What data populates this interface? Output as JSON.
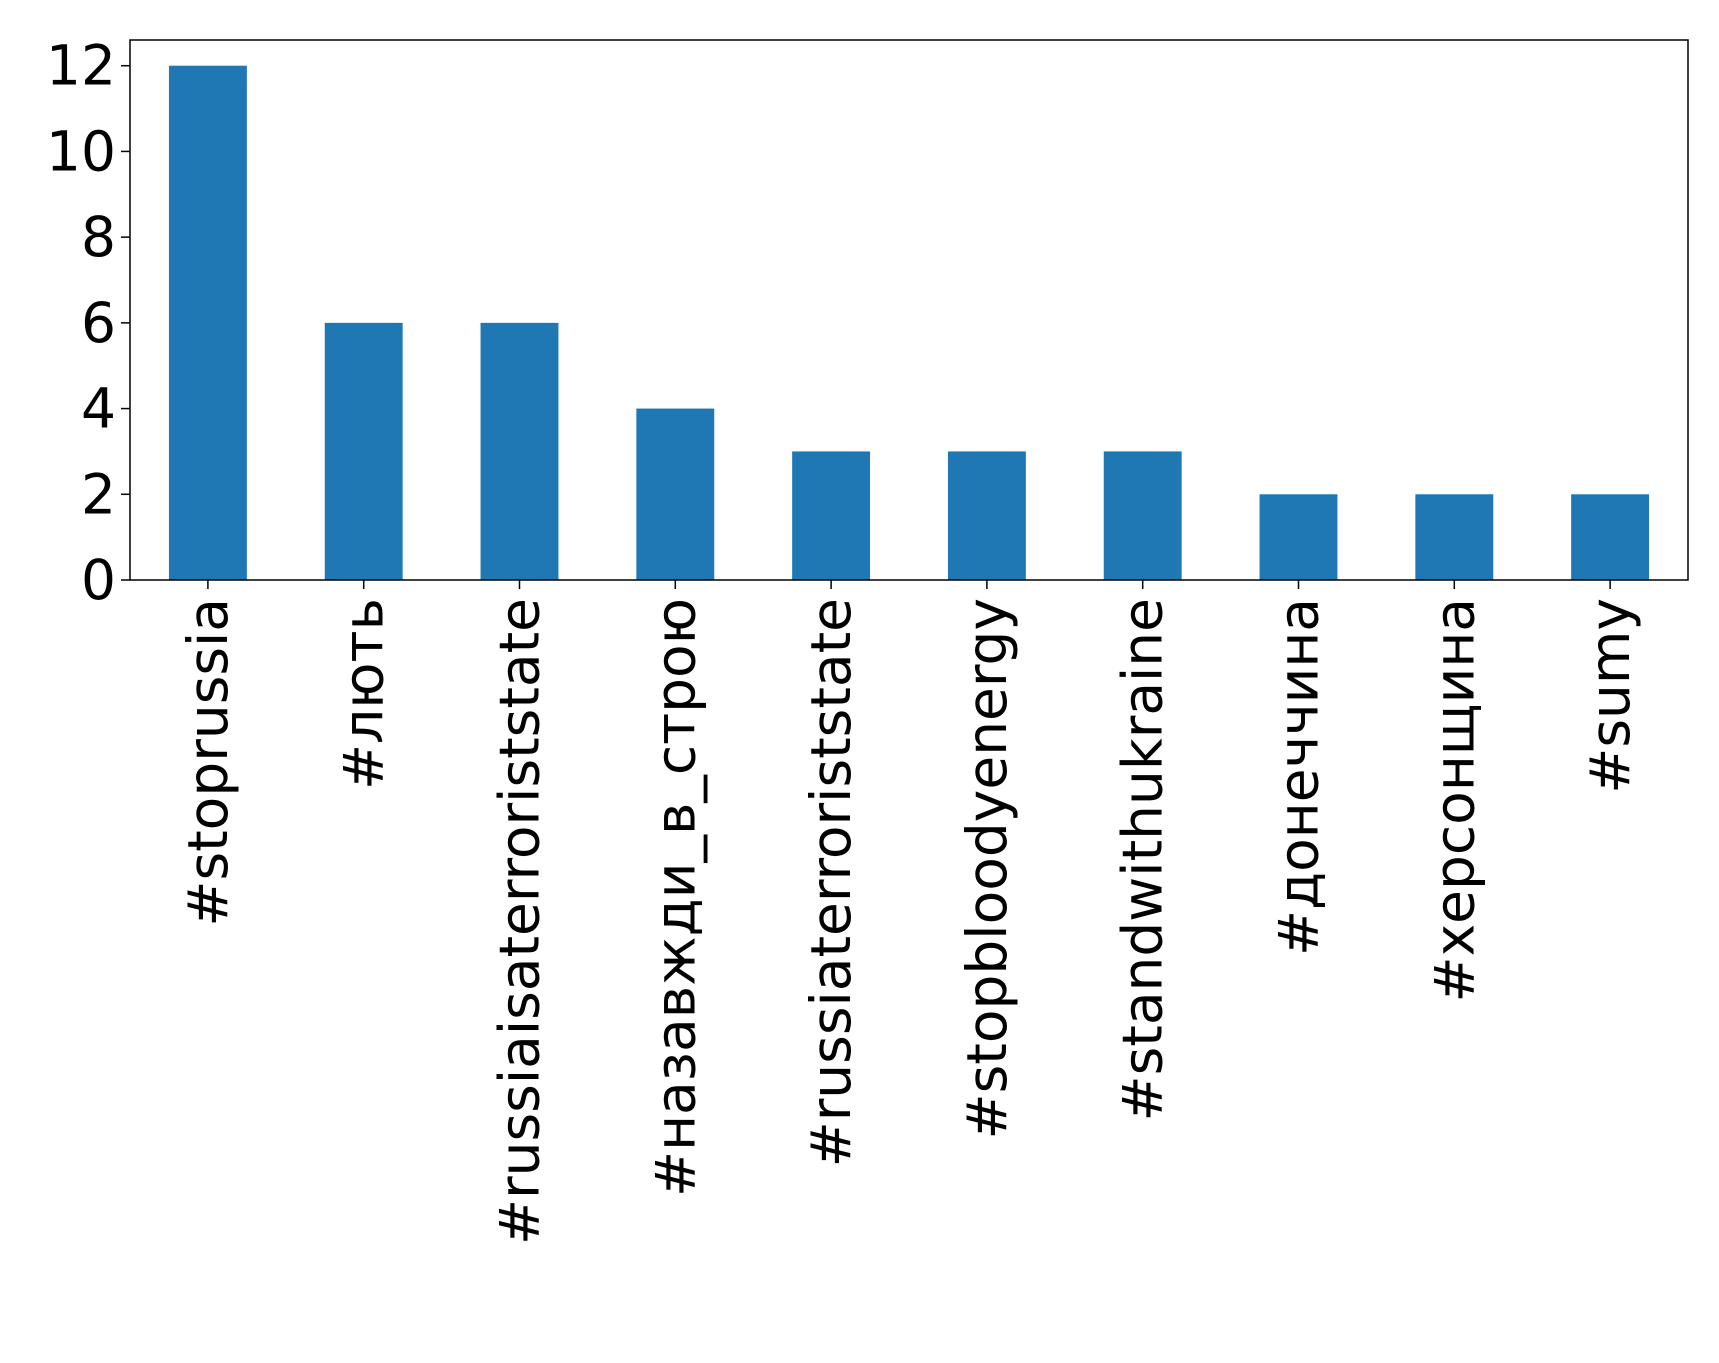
{
  "chart_data": {
    "type": "bar",
    "title": "",
    "xlabel": "",
    "ylabel": "",
    "categories": [
      "#stoprussia",
      "#лють",
      "#russiaisaterroriststate",
      "#назавжди_в_строю",
      "#russiaterroriststate",
      "#stopbloodyenergy",
      "#standwithukraine",
      "#донеччина",
      "#херсонщина",
      "#sumy"
    ],
    "values": [
      12,
      6,
      6,
      4,
      3,
      3,
      3,
      2,
      2,
      2
    ],
    "ylim": [
      0,
      12.6
    ],
    "yticks": [
      "0",
      "2",
      "4",
      "6",
      "8",
      "10",
      "12"
    ],
    "grid": false,
    "legend": "none",
    "bar_color": "#1f77b4"
  }
}
